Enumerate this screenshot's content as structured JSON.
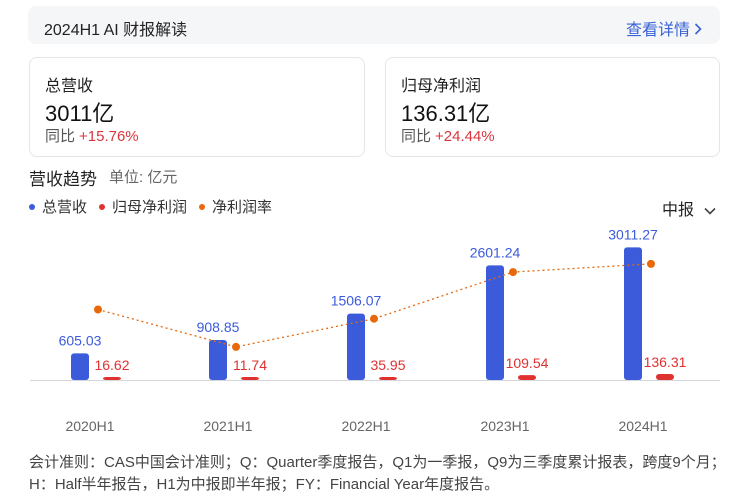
{
  "banner": {
    "title": "2024H1 AI 财报解读",
    "link": "查看详情",
    "link_icon": "chevron-right-icon"
  },
  "cards": [
    {
      "label": "总营收",
      "value": "3011亿",
      "yoy_label": "同比",
      "yoy_value": "+15.76%"
    },
    {
      "label": "归母净利润",
      "value": "136.31亿",
      "yoy_label": "同比",
      "yoy_value": "+24.44%"
    }
  ],
  "section": {
    "title": "营收趋势",
    "unit": "单位: 亿元"
  },
  "period_select": {
    "value": "中报",
    "icon": "chevron-down-icon"
  },
  "colors": {
    "revenue": "#3b5bdb",
    "profit": "#e03131",
    "margin": "#e8690b",
    "link": "#3a62d6",
    "positive": "#d9363e"
  },
  "chart_data": {
    "type": "bar",
    "categories": [
      "2020H1",
      "2021H1",
      "2022H1",
      "2023H1",
      "2024H1"
    ],
    "legend_position": "top-left",
    "series": [
      {
        "name": "总营收",
        "type": "bar",
        "values": [
          605.03,
          908.85,
          1506.07,
          2601.24,
          3011.27
        ],
        "labels": [
          "605.03",
          "908.85",
          "1506.07",
          "2601.24",
          "3011.27"
        ]
      },
      {
        "name": "归母净利润",
        "type": "bar",
        "values": [
          16.62,
          11.74,
          35.95,
          109.54,
          136.31
        ],
        "labels": [
          "16.62",
          "11.74",
          "35.95",
          "109.54",
          "136.31"
        ]
      },
      {
        "name": "净利润率",
        "type": "line",
        "values": [
          2.75,
          1.29,
          2.39,
          4.21,
          4.53
        ]
      }
    ],
    "ylim": [
      0,
      3200
    ],
    "margin_ylim": [
      0,
      5.5
    ],
    "grid": false
  },
  "footnote": "会计准则：CAS中国会计准则；Q：Quarter季度报告，Q1为一季报，Q9为三季度累计报表，跨度9个月；H：Half半年报告，H1为中报即半年报；FY：Financial Year年度报告。"
}
